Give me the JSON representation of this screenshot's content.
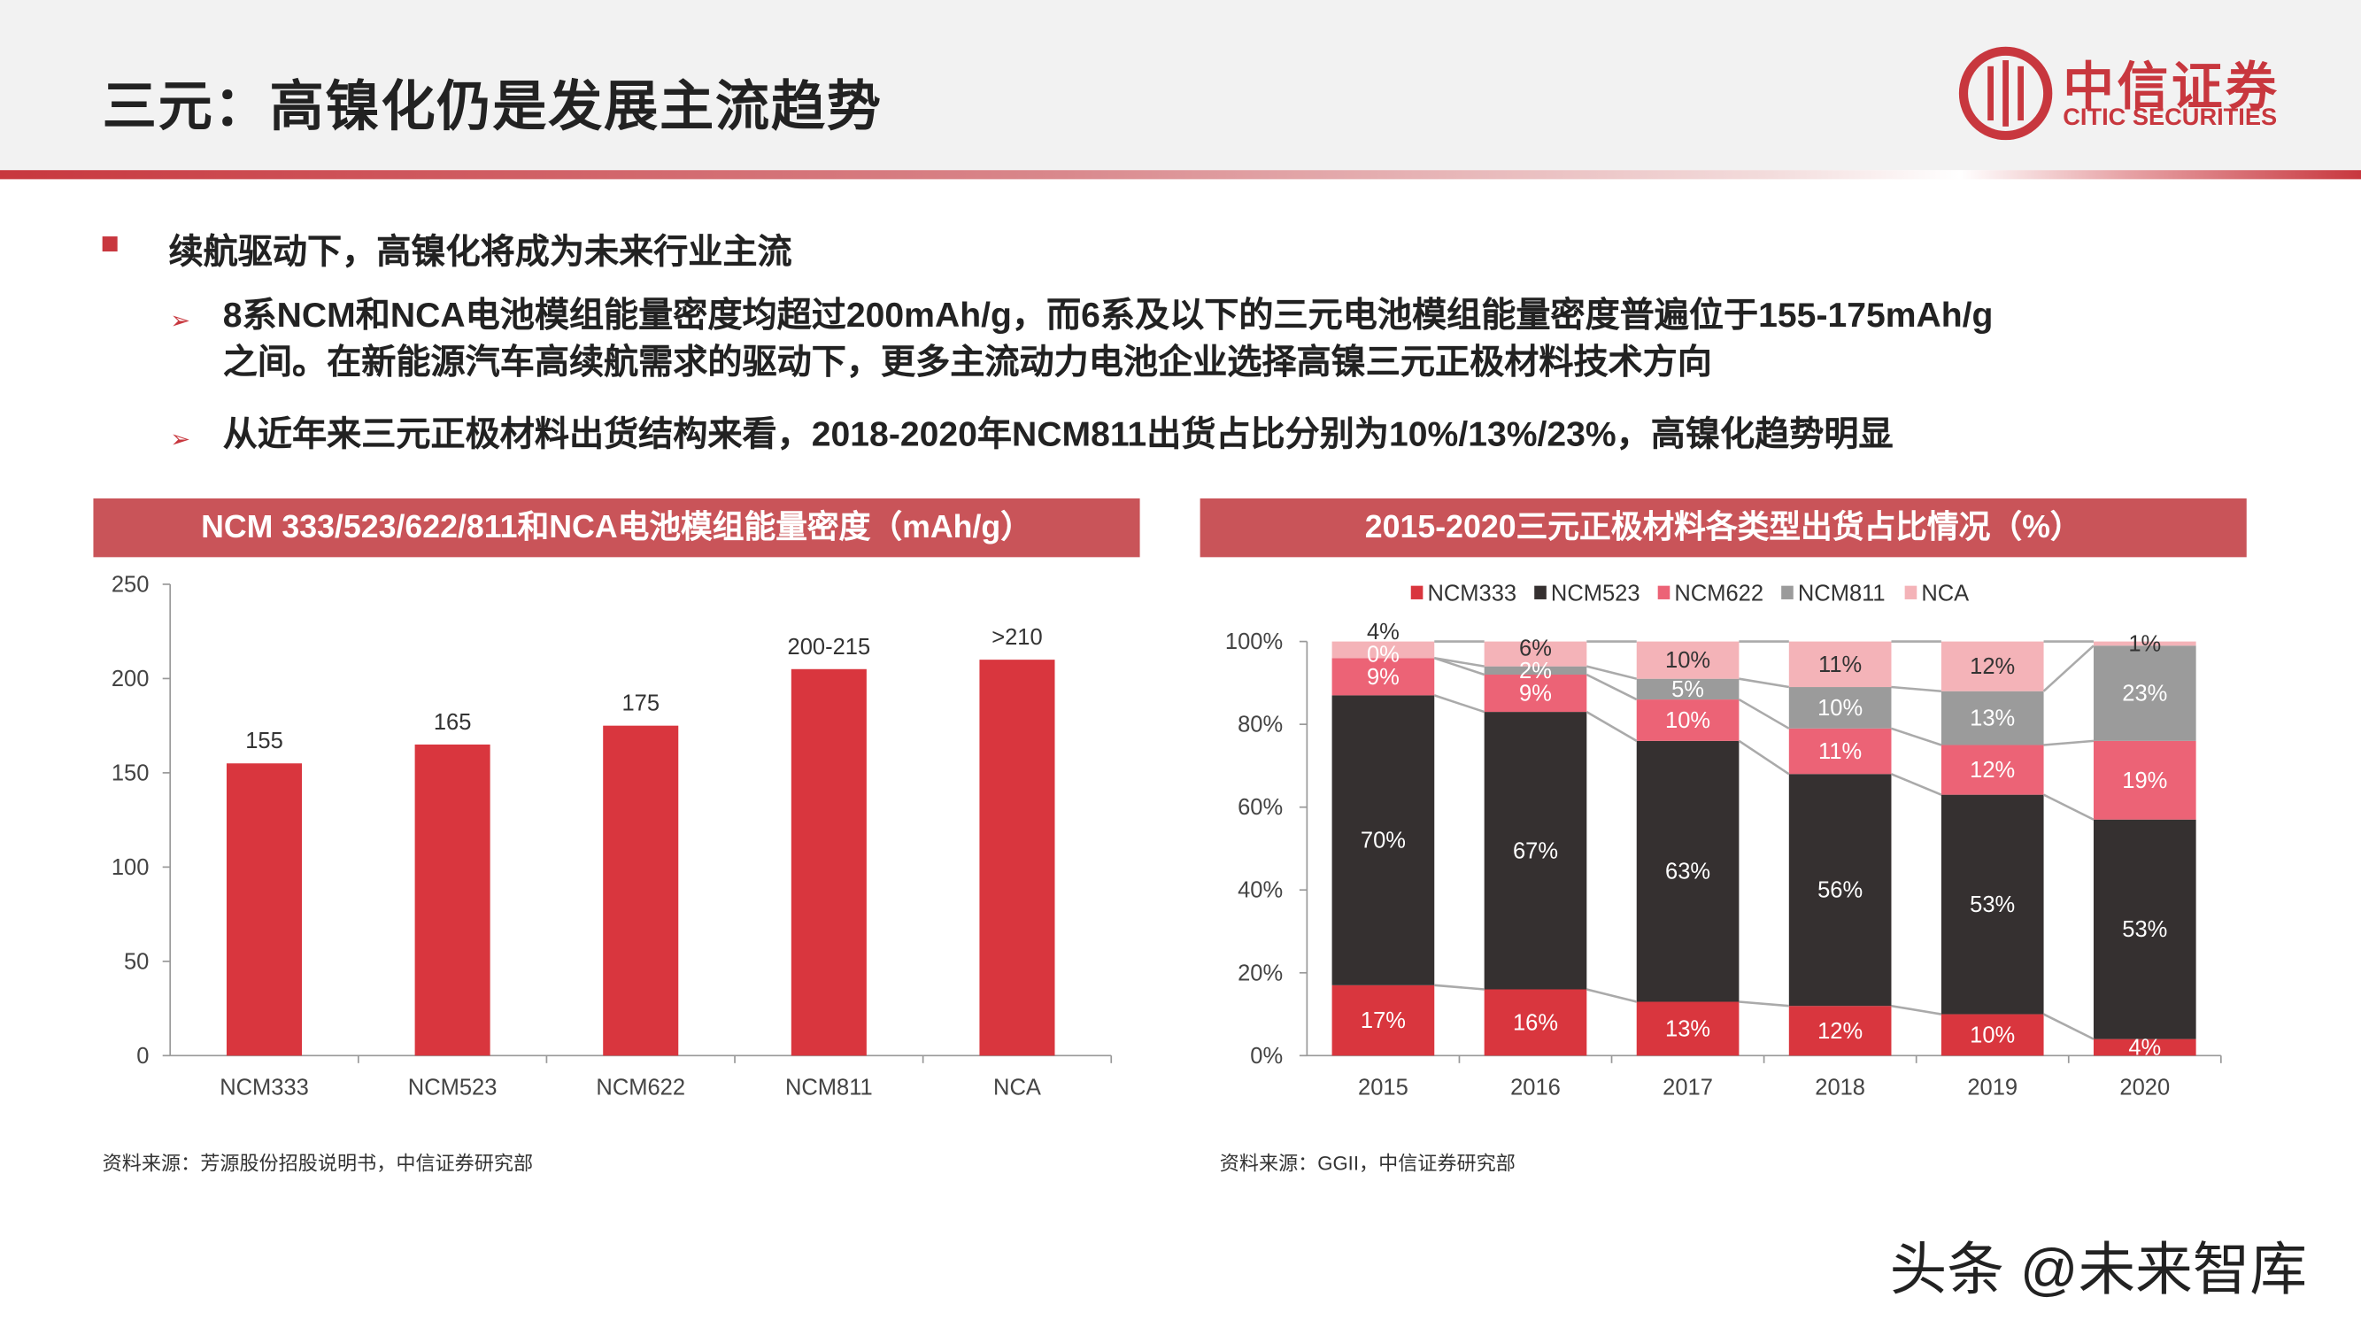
{
  "title": "三元：高镍化仍是发展主流趋势",
  "logo": {
    "cn": "中信证券",
    "en": "CITIC SECURITIES"
  },
  "bullets": {
    "main": "续航驱动下，高镍化将成为未来行业主流",
    "sub1_line1": "8系NCM和NCA电池模组能量密度均超过200mAh/g，而6系及以下的三元电池模组能量密度普遍位于155-175mAh/g",
    "sub1_line2": "之间。在新能源汽车高续航需求的驱动下，更多主流动力电池企业选择高镍三元正极材料技术方向",
    "sub2": "从近年来三元正极材料出货结构来看，2018-2020年NCM811出货占比分别为10%/13%/23%，高镍化趋势明显"
  },
  "colors": {
    "accent": "#c8373e",
    "header_bar": "#c95459",
    "ncm333": "#d9363e",
    "ncm523": "#353030",
    "ncm622": "#ec6376",
    "ncm811": "#9b9b9b",
    "nca": "#f4b3b8"
  },
  "chart_data": [
    {
      "type": "bar",
      "title": "NCM 333/523/622/811和NCA电池模组能量密度（mAh/g）",
      "categories": [
        "NCM333",
        "NCM523",
        "NCM622",
        "NCM811",
        "NCA"
      ],
      "values": [
        155,
        165,
        175,
        205,
        210
      ],
      "data_labels": [
        "155",
        "165",
        "175",
        "200-215",
        ">210"
      ],
      "ylim": [
        0,
        250
      ],
      "yticks": [
        "0",
        "50",
        "100",
        "150",
        "200",
        "250"
      ],
      "grid": false,
      "source": "资料来源：芳源股份招股说明书，中信证券研究部"
    },
    {
      "type": "bar",
      "stacked": true,
      "title": "2015-2020三元正极材料各类型出货占比情况（%）",
      "categories": [
        "2015",
        "2016",
        "2017",
        "2018",
        "2019",
        "2020"
      ],
      "series": [
        {
          "name": "NCM333",
          "values": [
            17,
            16,
            13,
            12,
            10,
            4
          ]
        },
        {
          "name": "NCM523",
          "values": [
            70,
            67,
            63,
            56,
            53,
            53
          ]
        },
        {
          "name": "NCM622",
          "values": [
            9,
            9,
            10,
            11,
            12,
            19
          ]
        },
        {
          "name": "NCM811",
          "values": [
            0,
            2,
            5,
            10,
            13,
            23
          ]
        },
        {
          "name": "NCA",
          "values": [
            4,
            6,
            10,
            11,
            12,
            1
          ]
        }
      ],
      "ylim": [
        0,
        100
      ],
      "yticks": [
        "0%",
        "20%",
        "40%",
        "60%",
        "80%",
        "100%"
      ],
      "legend": "top",
      "grid": false,
      "source": "资料来源：GGII，中信证券研究部"
    }
  ],
  "watermark": "头条 @未来智库"
}
